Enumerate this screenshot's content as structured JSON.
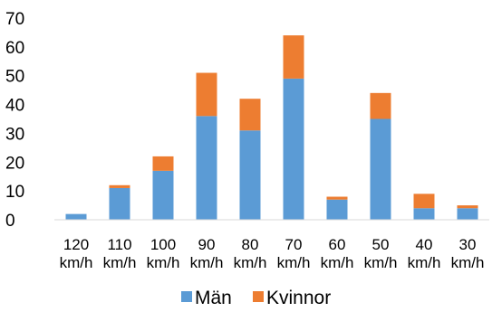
{
  "chart_data": {
    "type": "bar",
    "stacked": true,
    "categories": [
      [
        "120",
        "km/h"
      ],
      [
        "110",
        "km/h"
      ],
      [
        "100",
        "km/h"
      ],
      [
        "90",
        "km/h"
      ],
      [
        "80",
        "km/h"
      ],
      [
        "70",
        "km/h"
      ],
      [
        "60",
        "km/h"
      ],
      [
        "50",
        "km/h"
      ],
      [
        "40",
        "km/h"
      ],
      [
        "30",
        "km/h"
      ]
    ],
    "series": [
      {
        "name": "Män",
        "color": "#5b9bd5",
        "values": [
          2,
          11,
          17,
          36,
          31,
          49,
          7,
          35,
          4,
          4
        ]
      },
      {
        "name": "Kvinnor",
        "color": "#ed7d31",
        "values": [
          0,
          1,
          5,
          15,
          11,
          15,
          1,
          9,
          5,
          1
        ]
      }
    ],
    "ylim": [
      0,
      70
    ],
    "yticks": [
      "0",
      "10",
      "20",
      "30",
      "40",
      "50",
      "60",
      "70"
    ],
    "grid": false,
    "legend_position": "bottom",
    "title": "",
    "xlabel": "",
    "ylabel": ""
  }
}
